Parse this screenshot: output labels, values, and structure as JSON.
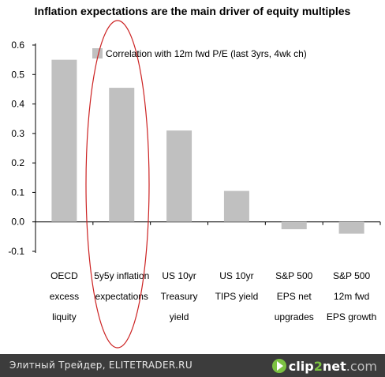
{
  "chart_data": {
    "type": "bar",
    "title": "Inflation expectations are the main driver of equity multiples",
    "categories": [
      [
        "OECD",
        "excess",
        "liquity"
      ],
      [
        "5y5y inflation",
        "expectations"
      ],
      [
        "US 10yr",
        "Treasury",
        "yield"
      ],
      [
        "US 10yr",
        "TIPS yield"
      ],
      [
        "S&P 500",
        "EPS net",
        "upgrades"
      ],
      [
        "S&P 500",
        "12m fwd",
        "EPS growth"
      ]
    ],
    "series": [
      {
        "name": "Correlation with 12m fwd P/E (last 3yrs, 4wk ch)",
        "values": [
          0.55,
          0.455,
          0.31,
          0.105,
          -0.025,
          -0.04
        ]
      }
    ],
    "yticks": [
      "0.6",
      "0.5",
      "0.4",
      "0.3",
      "0.2",
      "0.1",
      "0.0",
      "-0.1"
    ],
    "ylim": [
      -0.1,
      0.6
    ],
    "legend_position": "top-right",
    "grid": false,
    "bar_color": "#c0c0c0",
    "highlight_color": "#cc2222"
  },
  "footer": {
    "source_text": "Элитный Трейдер, ELITETRADER.RU",
    "brand_part1": "clip",
    "brand_part2": "2",
    "brand_part3": "net",
    "brand_part4": ".com"
  }
}
